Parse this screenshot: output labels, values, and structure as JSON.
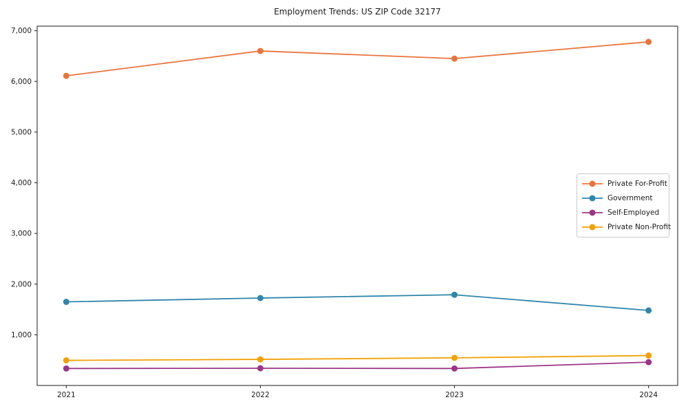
{
  "window": {
    "background": "#ffffff"
  },
  "chart_data": {
    "type": "line",
    "title": "Employment Trends: US ZIP Code 32177",
    "x": [
      2021,
      2022,
      2023,
      2024
    ],
    "x_tick_labels": [
      "2021",
      "2022",
      "2023",
      "2024"
    ],
    "series": [
      {
        "name": "Private For-Profit",
        "color": "#e8743b",
        "values": [
          6110,
          6600,
          6450,
          6780
        ]
      },
      {
        "name": "Government",
        "color": "#2e86ab",
        "values": [
          1650,
          1725,
          1790,
          1480
        ]
      },
      {
        "name": "Self-Employed",
        "color": "#9c3587",
        "values": [
          335,
          340,
          335,
          460
        ]
      },
      {
        "name": "Private Non-Profit",
        "color": "#f2a104",
        "values": [
          495,
          515,
          545,
          590
        ]
      }
    ],
    "y_ticks": [
      {
        "value": 1000,
        "label": "1,000"
      },
      {
        "value": 2000,
        "label": "2,000"
      },
      {
        "value": 3000,
        "label": "3,000"
      },
      {
        "value": 4000,
        "label": "4,000"
      },
      {
        "value": 5000,
        "label": "5,000"
      },
      {
        "value": 6000,
        "label": "6,000"
      },
      {
        "value": 7000,
        "label": "7,000"
      }
    ],
    "xlim": [
      2020.85,
      2024.15
    ],
    "ylim": [
      0,
      7090
    ],
    "xlabel": "",
    "ylabel": "",
    "grid": false,
    "legend_position": "center-right",
    "marker": "circle",
    "line_width": 1.8,
    "marker_radius": 4.5,
    "axes_color": "#1a1a1a"
  }
}
